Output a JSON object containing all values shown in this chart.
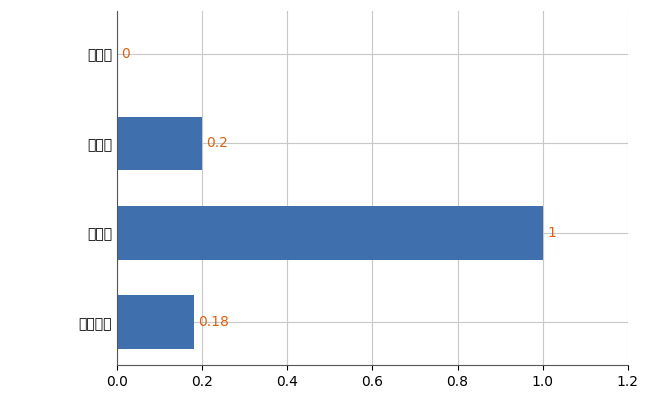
{
  "categories": [
    "草津町",
    "県平均",
    "県最大",
    "全国平均"
  ],
  "values": [
    0,
    0.2,
    1,
    0.18
  ],
  "labels": [
    "0",
    "0.2",
    "1",
    "0.18"
  ],
  "bar_color": "#3f6fad",
  "xlim": [
    0,
    1.2
  ],
  "xticks": [
    0,
    0.2,
    0.4,
    0.6,
    0.8,
    1.0,
    1.2
  ],
  "grid_color": "#c8c8c8",
  "background_color": "#ffffff",
  "label_color": "#e06010",
  "label_fontsize": 10,
  "tick_fontsize": 10,
  "bar_height": 0.6
}
